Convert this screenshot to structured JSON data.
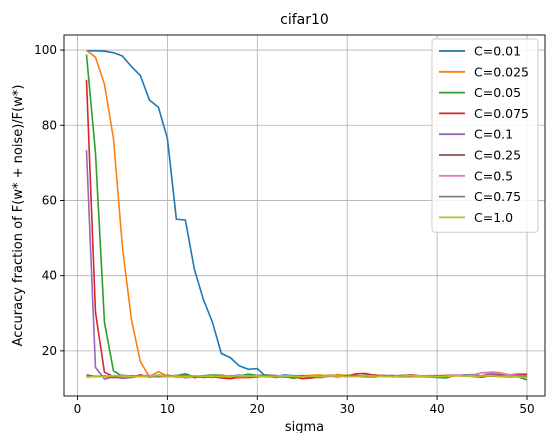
{
  "chart_data": {
    "type": "line",
    "title": "cifar10",
    "xlabel": "sigma",
    "ylabel": "Accuracy fraction of F(w* + noise)/F(w*)",
    "xlim": [
      -1.5,
      52
    ],
    "ylim": [
      8,
      104
    ],
    "xticks": [
      0,
      10,
      20,
      30,
      40,
      50
    ],
    "yticks": [
      20,
      40,
      60,
      80,
      100
    ],
    "grid": true,
    "legend_position": "top-right",
    "series": [
      {
        "name": "C=0.01",
        "color": "#1f77b4",
        "x": [
          1,
          2,
          3,
          4,
          5,
          6,
          7,
          8,
          9,
          10,
          11,
          12,
          13,
          14,
          15,
          16,
          17,
          18,
          19,
          20,
          21,
          22,
          23,
          24,
          25,
          26,
          27,
          28,
          29,
          30,
          31,
          32,
          33,
          34,
          35,
          36,
          37,
          38,
          39,
          40,
          41,
          42,
          43,
          44,
          45,
          46,
          47,
          48,
          49,
          50
        ],
        "y": [
          99.8,
          99.8,
          99.7,
          99.3,
          98.4,
          95.6,
          93.2,
          86.7,
          84.8,
          76.5,
          55.0,
          54.8,
          41.7,
          33.7,
          27.7,
          19.3,
          18.2,
          16.0,
          15.1,
          15.3,
          13.1,
          13.1,
          13.6,
          13.4,
          13.4,
          13.2,
          13.2,
          13.3,
          13.6,
          13.3,
          13.3,
          13.1,
          13.1,
          13.5,
          13.1,
          13.2,
          13.1,
          13.3,
          13.4,
          13.4,
          13.2,
          13.4,
          13.6,
          13.7,
          13.3,
          13.9,
          13.9,
          13.6,
          13.1,
          13.4
        ]
      },
      {
        "name": "C=0.025",
        "color": "#ff7f0e",
        "x": [
          1,
          2,
          3,
          4,
          5,
          6,
          7,
          8,
          9,
          10,
          11,
          12,
          13,
          14,
          15,
          16,
          17,
          18,
          19,
          20,
          21,
          22,
          23,
          24,
          25,
          26,
          27,
          28,
          29,
          30,
          31,
          32,
          33,
          34,
          35,
          36,
          37,
          38,
          39,
          40,
          41,
          42,
          43,
          44,
          45,
          46,
          47,
          48,
          49,
          50
        ],
        "y": [
          99.9,
          98.1,
          90.9,
          76.5,
          47.6,
          28.3,
          17.1,
          13.1,
          14.5,
          13.2,
          13.4,
          13.4,
          12.9,
          13.2,
          12.9,
          13.6,
          13.1,
          12.8,
          13.0,
          13.3,
          13.4,
          12.9,
          13.2,
          12.8,
          13.3,
          13.5,
          13.6,
          13.3,
          13.7,
          13.4,
          13.4,
          13.2,
          13.7,
          13.3,
          13.2,
          13.4,
          13.1,
          13.2,
          13.3,
          13.4,
          13.5,
          13.6,
          13.4,
          13.3,
          13.4,
          14.4,
          14.2,
          13.6,
          13.2,
          13.1
        ]
      },
      {
        "name": "C=0.05",
        "color": "#2ca02c",
        "x": [
          1,
          2,
          3,
          4,
          5,
          6,
          7,
          8,
          9,
          10,
          11,
          12,
          13,
          14,
          15,
          16,
          17,
          18,
          19,
          20,
          21,
          22,
          23,
          24,
          25,
          26,
          27,
          28,
          29,
          30,
          31,
          32,
          33,
          34,
          35,
          36,
          37,
          38,
          39,
          40,
          41,
          42,
          43,
          44,
          45,
          46,
          47,
          48,
          49,
          50
        ],
        "y": [
          98.8,
          72.7,
          27.6,
          14.7,
          13.2,
          13.1,
          13.4,
          13.1,
          13.6,
          13.2,
          13.4,
          13.9,
          13.1,
          13.4,
          13.6,
          13.5,
          13.2,
          13.3,
          13.8,
          13.5,
          13.6,
          13.4,
          13.3,
          12.7,
          13.1,
          13.1,
          12.9,
          13.3,
          13.1,
          13.5,
          13.2,
          13.5,
          13.4,
          13.4,
          13.3,
          13.5,
          13.5,
          13.2,
          13.1,
          12.9,
          12.8,
          13.5,
          13.4,
          13.6,
          13.2,
          13.3,
          13.2,
          13.1,
          13.1,
          12.3
        ]
      },
      {
        "name": "C=0.075",
        "color": "#d62728",
        "x": [
          1,
          2,
          3,
          4,
          5,
          6,
          7,
          8,
          9,
          10,
          11,
          12,
          13,
          14,
          15,
          16,
          17,
          18,
          19,
          20,
          21,
          22,
          23,
          24,
          25,
          26,
          27,
          28,
          29,
          30,
          31,
          32,
          33,
          34,
          35,
          36,
          37,
          38,
          39,
          40,
          41,
          42,
          43,
          44,
          45,
          46,
          47,
          48,
          49,
          50
        ],
        "y": [
          92.1,
          30.3,
          14.3,
          13.2,
          13.1,
          13.0,
          13.6,
          13.1,
          13.3,
          13.5,
          13.2,
          13.4,
          12.9,
          13.2,
          13.1,
          12.8,
          12.6,
          13.0,
          12.9,
          13.1,
          13.4,
          13.3,
          13.0,
          13.2,
          12.6,
          12.8,
          13.1,
          13.5,
          13.2,
          13.3,
          13.9,
          14.0,
          13.5,
          13.4,
          13.4,
          13.3,
          13.6,
          13.4,
          13.2,
          13.3,
          13.2,
          13.5,
          13.4,
          13.2,
          13.0,
          13.5,
          13.7,
          13.6,
          13.8,
          13.8
        ]
      },
      {
        "name": "C=0.1",
        "color": "#9467bd",
        "x": [
          1,
          2,
          3,
          4,
          5,
          6,
          7,
          8,
          9,
          10,
          11,
          12,
          13,
          14,
          15,
          16,
          17,
          18,
          19,
          20,
          21,
          22,
          23,
          24,
          25,
          26,
          27,
          28,
          29,
          30,
          31,
          32,
          33,
          34,
          35,
          36,
          37,
          38,
          39,
          40,
          41,
          42,
          43,
          44,
          45,
          46,
          47,
          48,
          49,
          50
        ],
        "y": [
          73.4,
          15.6,
          12.5,
          13.1,
          12.7,
          12.9,
          13.3,
          13.5,
          13.2,
          13.4,
          13.1,
          13.0,
          13.3,
          12.9,
          13.1,
          13.4,
          13.2,
          13.6,
          13.1,
          13.0,
          13.4,
          13.5,
          13.2,
          13.1,
          13.2,
          13.3,
          13.1,
          13.4,
          13.3,
          13.2,
          13.4,
          13.3,
          13.1,
          13.5,
          13.2,
          13.1,
          13.4,
          13.3,
          13.2,
          13.3,
          13.4,
          13.5,
          13.4,
          13.3,
          13.2,
          13.8,
          13.7,
          13.6,
          13.5,
          13.4
        ]
      },
      {
        "name": "C=0.25",
        "color": "#8c564b",
        "x": [
          1,
          2,
          3,
          4,
          5,
          6,
          7,
          8,
          9,
          10,
          11,
          12,
          13,
          14,
          15,
          16,
          17,
          18,
          19,
          20,
          21,
          22,
          23,
          24,
          25,
          26,
          27,
          28,
          29,
          30,
          31,
          32,
          33,
          34,
          35,
          36,
          37,
          38,
          39,
          40,
          41,
          42,
          43,
          44,
          45,
          46,
          47,
          48,
          49,
          50
        ],
        "y": [
          13.6,
          13.2,
          13.3,
          12.9,
          13.1,
          13.4,
          13.2,
          13.3,
          13.1,
          13.2,
          13.5,
          13.4,
          13.2,
          13.1,
          13.3,
          13.2,
          13.4,
          13.3,
          13.1,
          13.2,
          13.4,
          13.3,
          13.2,
          13.1,
          13.4,
          13.3,
          13.2,
          13.5,
          13.3,
          13.2,
          13.4,
          13.3,
          13.5,
          13.2,
          13.1,
          13.3,
          13.4,
          13.2,
          13.3,
          13.1,
          13.3,
          13.4,
          13.5,
          13.3,
          13.2,
          13.4,
          13.6,
          13.5,
          13.3,
          13.2
        ]
      },
      {
        "name": "C=0.5",
        "color": "#e377c2",
        "x": [
          1,
          2,
          3,
          4,
          5,
          6,
          7,
          8,
          9,
          10,
          11,
          12,
          13,
          14,
          15,
          16,
          17,
          18,
          19,
          20,
          21,
          22,
          23,
          24,
          25,
          26,
          27,
          28,
          29,
          30,
          31,
          32,
          33,
          34,
          35,
          36,
          37,
          38,
          39,
          40,
          41,
          42,
          43,
          44,
          45,
          46,
          47,
          48,
          49,
          50
        ],
        "y": [
          13.1,
          13.3,
          13.2,
          13.4,
          13.1,
          13.2,
          13.3,
          13.5,
          13.2,
          13.1,
          13.4,
          12.8,
          13.1,
          13.3,
          13.2,
          13.4,
          13.3,
          13.1,
          13.2,
          13.5,
          13.3,
          13.2,
          13.1,
          13.4,
          13.2,
          13.3,
          13.1,
          13.2,
          13.4,
          13.3,
          13.2,
          13.4,
          13.1,
          13.3,
          13.5,
          13.2,
          13.3,
          13.4,
          13.2,
          13.1,
          13.3,
          13.5,
          13.4,
          13.6,
          14.2,
          14.3,
          14.0,
          13.7,
          13.4,
          13.3
        ]
      },
      {
        "name": "C=0.75",
        "color": "#7f7f7f",
        "x": [
          1,
          2,
          3,
          4,
          5,
          6,
          7,
          8,
          9,
          10,
          11,
          12,
          13,
          14,
          15,
          16,
          17,
          18,
          19,
          20,
          21,
          22,
          23,
          24,
          25,
          26,
          27,
          28,
          29,
          30,
          31,
          32,
          33,
          34,
          35,
          36,
          37,
          38,
          39,
          40,
          41,
          42,
          43,
          44,
          45,
          46,
          47,
          48,
          49,
          50
        ],
        "y": [
          13.4,
          13.1,
          13.3,
          13.2,
          13.5,
          13.3,
          13.1,
          13.4,
          13.2,
          13.3,
          13.1,
          13.4,
          13.2,
          13.3,
          13.5,
          13.2,
          13.1,
          13.3,
          13.4,
          13.2,
          13.3,
          13.1,
          13.4,
          13.3,
          13.2,
          13.4,
          13.1,
          13.3,
          13.2,
          13.4,
          13.3,
          13.2,
          13.1,
          13.3,
          13.4,
          13.2,
          13.3,
          13.1,
          13.4,
          13.3,
          13.2,
          13.4,
          13.3,
          13.2,
          13.4,
          13.3,
          13.2,
          13.4,
          13.3,
          13.2
        ]
      },
      {
        "name": "C=1.0",
        "color": "#bcbd22",
        "x": [
          1,
          2,
          3,
          4,
          5,
          6,
          7,
          8,
          9,
          10,
          11,
          12,
          13,
          14,
          15,
          16,
          17,
          18,
          19,
          20,
          21,
          22,
          23,
          24,
          25,
          26,
          27,
          28,
          29,
          30,
          31,
          32,
          33,
          34,
          35,
          36,
          37,
          38,
          39,
          40,
          41,
          42,
          43,
          44,
          45,
          46,
          47,
          48,
          49,
          50
        ],
        "y": [
          13.0,
          13.2,
          13.1,
          13.4,
          13.3,
          13.2,
          13.1,
          13.3,
          13.5,
          13.2,
          13.3,
          13.1,
          13.4,
          13.2,
          13.3,
          13.1,
          13.2,
          13.4,
          13.3,
          13.2,
          13.1,
          13.3,
          13.4,
          13.2,
          13.1,
          13.3,
          13.2,
          13.4,
          13.3,
          13.1,
          13.2,
          13.4,
          13.3,
          13.2,
          13.1,
          13.3,
          13.4,
          13.2,
          13.3,
          13.1,
          13.2,
          13.4,
          13.3,
          13.2,
          13.3,
          13.4,
          13.2,
          13.3,
          13.1,
          12.9
        ]
      }
    ]
  }
}
